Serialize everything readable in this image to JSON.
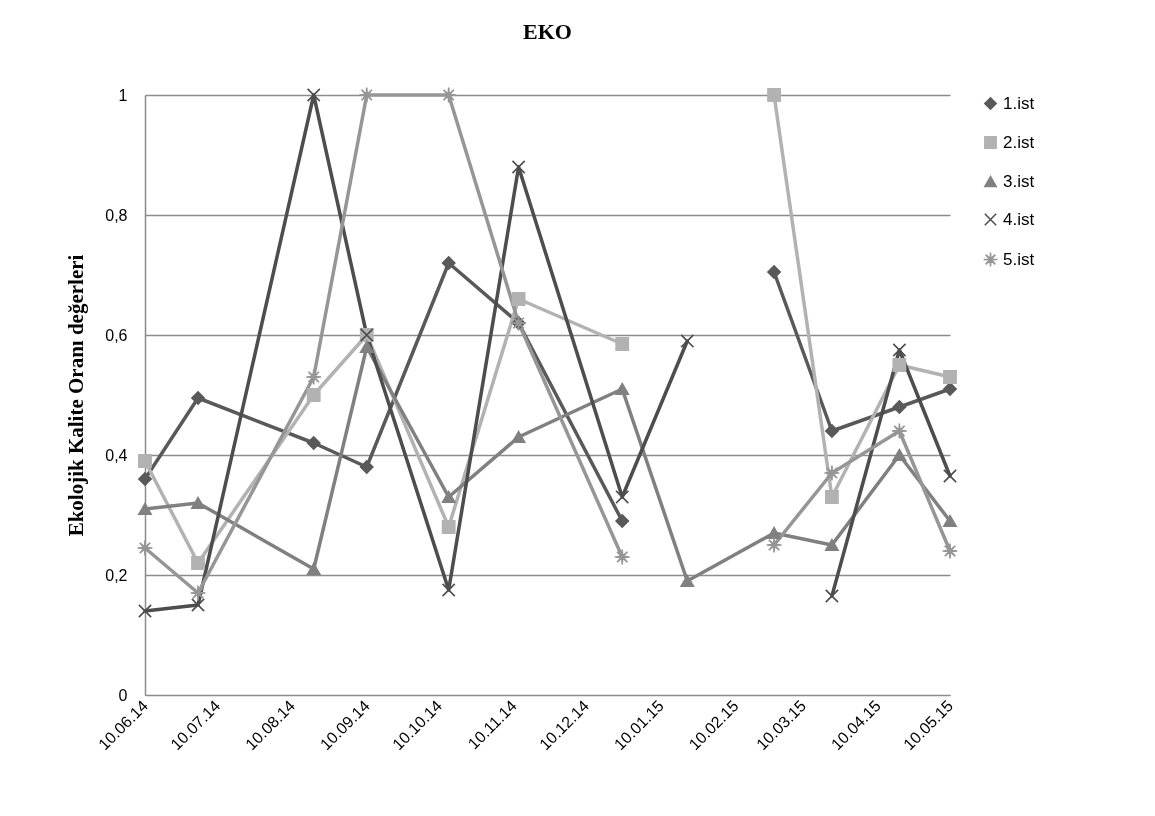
{
  "chart_data": {
    "type": "line",
    "title": "EKO",
    "ylabel": "Ekolojik Kalite Oranı değerleri",
    "x": [
      "2014-06-10",
      "2014-07-02",
      "2014-08-19",
      "2014-09-10",
      "2014-10-14",
      "2014-11-12",
      "2014-12-25",
      "2015-01-21",
      "2015-02-26",
      "2015-03-22",
      "2015-04-19",
      "2015-05-10"
    ],
    "series": [
      {
        "name": "1.ist",
        "color": "#595959",
        "marker": "diamond",
        "values": [
          0.36,
          0.495,
          0.42,
          0.38,
          0.72,
          0.62,
          0.29,
          null,
          0.705,
          0.44,
          0.48,
          0.51
        ]
      },
      {
        "name": "2.ist",
        "color": "#b2b2b2",
        "marker": "square",
        "values": [
          0.39,
          0.22,
          0.5,
          0.6,
          0.28,
          0.66,
          0.585,
          null,
          1,
          0.33,
          0.55,
          0.53
        ]
      },
      {
        "name": "3.ist",
        "color": "#808080",
        "marker": "triangle",
        "values": [
          0.31,
          0.32,
          0.21,
          0.58,
          0.33,
          0.43,
          0.51,
          0.19,
          0.27,
          0.25,
          0.4,
          0.29
        ]
      },
      {
        "name": "4.ist",
        "color": "#4d4d4d",
        "marker": "cross",
        "values": [
          0.14,
          0.15,
          1,
          0.6,
          0.175,
          0.88,
          0.33,
          0.59,
          null,
          0.165,
          0.575,
          0.365
        ]
      },
      {
        "name": "5.ist",
        "color": "#969696",
        "marker": "star",
        "values": [
          0.245,
          0.17,
          0.53,
          1,
          1,
          0.62,
          0.23,
          null,
          0.25,
          0.37,
          0.44,
          0.24
        ]
      }
    ],
    "xlim": [
      "2014-06-10",
      "2015-05-10"
    ],
    "xticks": [
      {
        "value": "2014-06-10",
        "label": "10.06.14"
      },
      {
        "value": "2014-07-10",
        "label": "10.07.14"
      },
      {
        "value": "2014-08-10",
        "label": "10.08.14"
      },
      {
        "value": "2014-09-10",
        "label": "10.09.14"
      },
      {
        "value": "2014-10-10",
        "label": "10.10.14"
      },
      {
        "value": "2014-11-10",
        "label": "10.11.14"
      },
      {
        "value": "2014-12-10",
        "label": "10.12.14"
      },
      {
        "value": "2015-01-10",
        "label": "10.01.15"
      },
      {
        "value": "2015-02-10",
        "label": "10.02.15"
      },
      {
        "value": "2015-03-10",
        "label": "10.03.15"
      },
      {
        "value": "2015-04-10",
        "label": "10.04.15"
      },
      {
        "value": "2015-05-10",
        "label": "10.05.15"
      }
    ],
    "ylim": [
      0,
      1
    ],
    "yticks": [
      0,
      {
        "value": 0.2,
        "label": "0,2"
      },
      {
        "value": 0.4,
        "label": "0,4"
      },
      {
        "value": 0.6,
        "label": "0,6"
      },
      {
        "value": 0.8,
        "label": "0,8"
      },
      1
    ],
    "grid": "y",
    "legend": "right",
    "line_style": "solid"
  }
}
